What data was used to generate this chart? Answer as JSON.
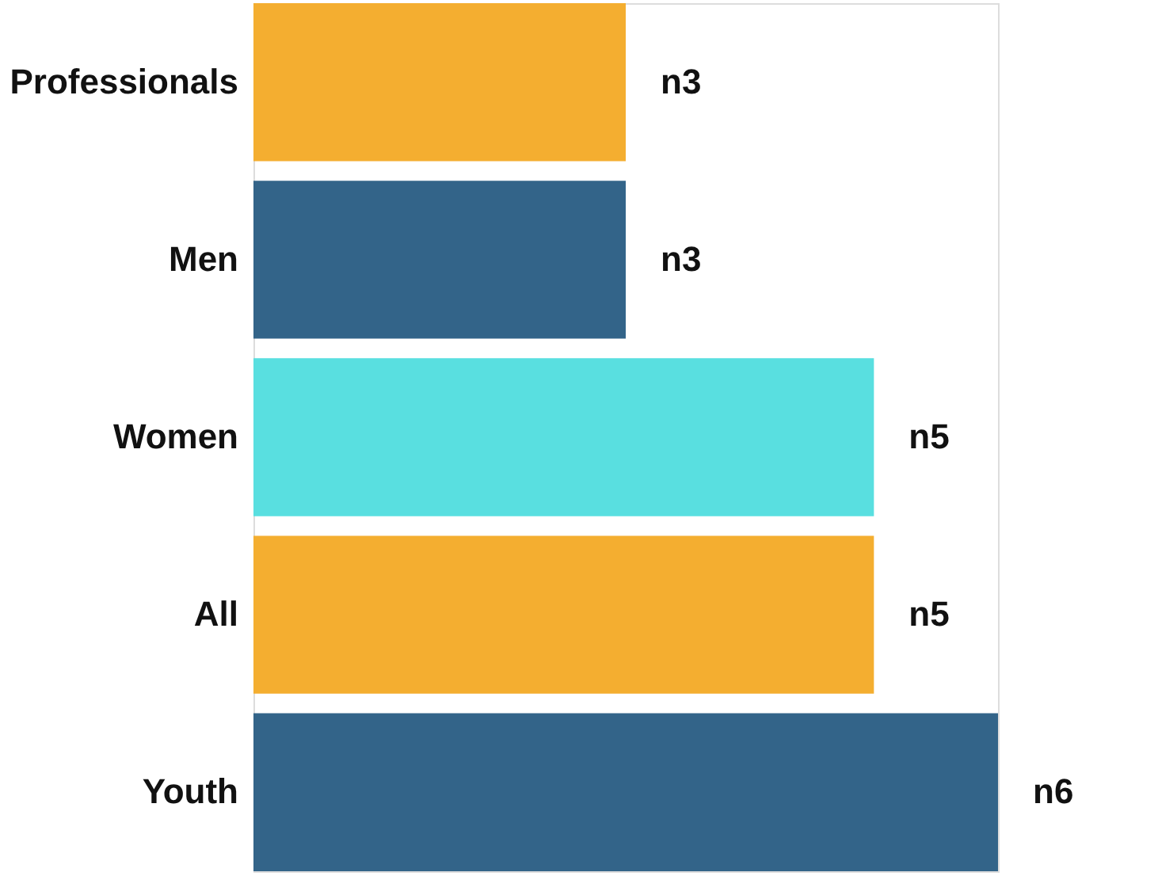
{
  "chart_data": {
    "type": "bar",
    "orientation": "horizontal",
    "categories": [
      "Professionals",
      "Men",
      "Women",
      "All",
      "Youth"
    ],
    "values": [
      3,
      3,
      5,
      5,
      6
    ],
    "colors": [
      "#f4ae30",
      "#336489",
      "#59dfe0",
      "#f4ae30",
      "#336489"
    ],
    "value_labels": [
      "n3",
      "n3",
      "n5",
      "n5",
      "n6"
    ],
    "tick_labels": "y"
  }
}
